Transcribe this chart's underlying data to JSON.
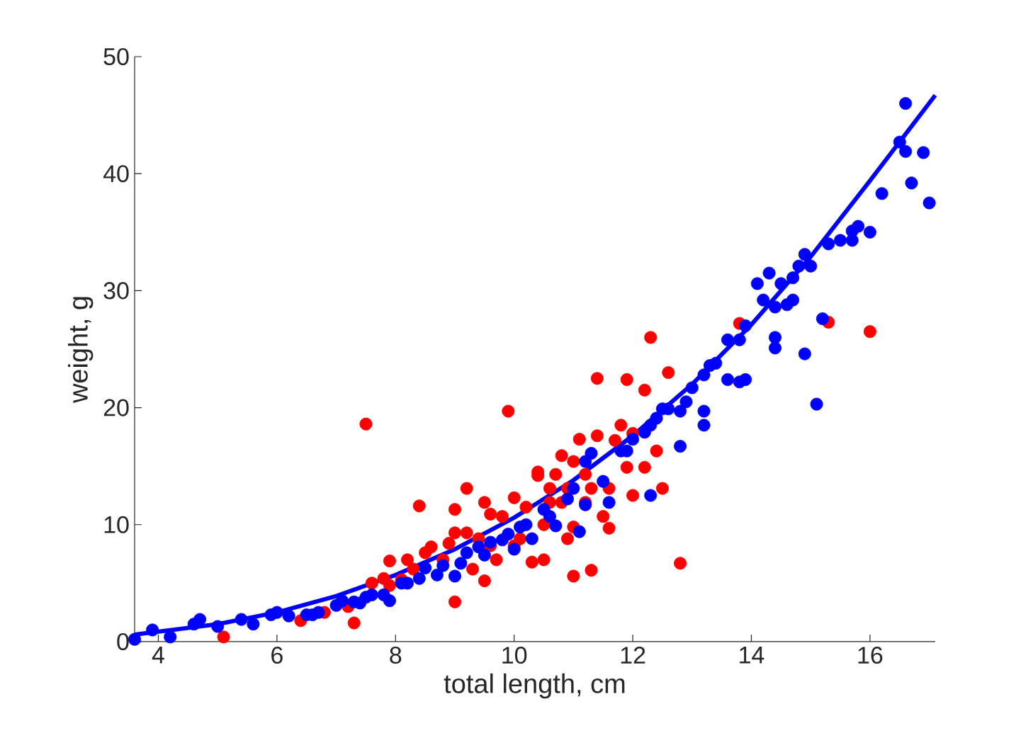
{
  "chart_data": {
    "type": "scatter",
    "xlabel": "total length, cm",
    "ylabel": "weight, g",
    "xlim": [
      3.6,
      17.1
    ],
    "ylim": [
      0,
      50
    ],
    "xticks": [
      4,
      6,
      8,
      10,
      12,
      14,
      16
    ],
    "yticks": [
      0,
      10,
      20,
      30,
      40,
      50
    ],
    "grid": false,
    "marker": "circle",
    "series": [
      {
        "color": "#ff0000",
        "x": [
          5.1,
          6.4,
          6.8,
          7.2,
          7.5,
          7.3,
          7.6,
          7.8,
          7.9,
          8.1,
          8.3,
          8.4,
          8.5,
          8.8,
          8.9,
          9.0,
          9.0,
          9.2,
          9.3,
          9.4,
          9.5,
          9.6,
          9.7,
          9.8,
          9.9,
          10.0,
          10.0,
          10.2,
          10.3,
          10.4,
          10.4,
          10.5,
          10.6,
          10.7,
          10.8,
          10.9,
          11.0,
          11.1,
          11.2,
          11.3,
          11.3,
          11.4,
          11.4,
          11.6,
          11.7,
          11.8,
          11.9,
          12.3,
          12.0,
          12.2,
          12.4,
          12.5,
          12.8,
          13.8,
          15.3,
          16.0,
          12.2,
          12.6,
          10.5,
          10.1,
          9.6,
          9.2,
          9.0,
          8.6,
          8.2,
          7.9,
          10.8,
          11.0,
          11.2,
          11.5,
          11.9,
          12.0,
          9.5,
          10.9,
          10.6,
          11.0,
          11.6
        ],
        "values": [
          0.4,
          1.8,
          2.5,
          3.0,
          18.6,
          1.6,
          5.0,
          5.4,
          6.9,
          5.3,
          6.2,
          11.6,
          7.6,
          7.0,
          8.4,
          3.4,
          9.3,
          9.3,
          6.2,
          8.8,
          11.9,
          10.9,
          7.0,
          10.7,
          19.7,
          8.2,
          12.3,
          11.5,
          6.8,
          14.2,
          14.5,
          10.0,
          13.1,
          14.3,
          15.9,
          8.8,
          15.4,
          17.3,
          14.3,
          6.1,
          13.1,
          17.6,
          22.5,
          13.1,
          17.2,
          18.5,
          22.4,
          26.0,
          17.8,
          14.9,
          16.3,
          13.1,
          6.7,
          27.2,
          27.3,
          26.5,
          21.5,
          23.0,
          7.0,
          8.8,
          8.2,
          13.1,
          11.3,
          8.1,
          7.0,
          4.8,
          11.9,
          9.8,
          11.9,
          10.7,
          14.9,
          12.5,
          5.2,
          13.1,
          11.9,
          5.6,
          9.7
        ]
      },
      {
        "color": "#0000ff",
        "x": [
          3.6,
          3.9,
          4.2,
          4.6,
          4.7,
          5.0,
          5.4,
          5.6,
          5.9,
          6.0,
          6.2,
          6.5,
          6.6,
          6.7,
          7.0,
          7.1,
          7.3,
          7.4,
          7.5,
          7.6,
          7.8,
          7.9,
          8.1,
          8.2,
          8.4,
          8.5,
          8.7,
          8.8,
          9.0,
          9.1,
          9.2,
          9.4,
          9.5,
          9.6,
          9.8,
          9.9,
          10.0,
          10.1,
          10.2,
          10.3,
          10.5,
          10.6,
          10.7,
          10.9,
          11.0,
          11.1,
          11.2,
          11.2,
          11.3,
          11.5,
          11.6,
          11.8,
          11.9,
          12.0,
          12.2,
          12.3,
          12.4,
          12.5,
          12.6,
          12.8,
          12.9,
          13.0,
          13.2,
          13.2,
          13.3,
          13.4,
          13.6,
          13.8,
          13.9,
          14.1,
          14.2,
          14.3,
          14.4,
          14.4,
          14.5,
          14.6,
          14.7,
          14.7,
          14.8,
          14.9,
          15.0,
          15.2,
          15.3,
          15.5,
          15.7,
          15.7,
          15.8,
          16.0,
          16.2,
          16.5,
          16.6,
          16.6,
          16.7,
          16.9,
          17.0,
          15.1,
          14.4,
          13.9,
          13.8,
          14.9,
          13.6,
          13.2,
          12.8,
          12.3
        ],
        "values": [
          0.2,
          1.0,
          0.4,
          1.5,
          1.9,
          1.3,
          1.9,
          1.5,
          2.3,
          2.5,
          2.2,
          2.3,
          2.3,
          2.5,
          3.1,
          3.5,
          3.4,
          3.3,
          3.8,
          4.0,
          4.0,
          3.5,
          5.0,
          5.0,
          5.4,
          6.3,
          5.7,
          6.5,
          5.6,
          6.7,
          7.6,
          8.1,
          7.4,
          8.5,
          8.7,
          9.2,
          7.9,
          9.8,
          10.0,
          8.8,
          11.3,
          10.7,
          9.9,
          12.2,
          13.1,
          9.4,
          11.7,
          15.4,
          16.1,
          13.7,
          11.9,
          16.3,
          16.3,
          17.3,
          17.9,
          18.5,
          19.1,
          19.9,
          19.9,
          19.7,
          20.5,
          21.7,
          19.7,
          22.8,
          23.6,
          23.8,
          25.8,
          25.8,
          27.0,
          30.6,
          29.2,
          31.5,
          26.0,
          28.6,
          30.6,
          28.8,
          31.1,
          29.2,
          32.1,
          33.1,
          32.1,
          27.6,
          34.0,
          34.3,
          35.1,
          34.3,
          35.5,
          35.0,
          38.3,
          42.7,
          46.0,
          41.9,
          39.2,
          41.8,
          37.5,
          20.3,
          25.1,
          22.4,
          22.2,
          24.6,
          22.4,
          18.5,
          16.7,
          12.5
        ]
      },
      {
        "type": "line",
        "color": "#0000ff",
        "marker": "none",
        "x": [
          3.6,
          5,
          6,
          7,
          8,
          9,
          10,
          11,
          12,
          13,
          14,
          15,
          16,
          17.1
        ],
        "values": [
          0.6,
          1.5,
          2.5,
          3.9,
          5.7,
          7.9,
          10.6,
          13.8,
          17.6,
          22.0,
          27.1,
          32.9,
          39.4,
          46.7
        ]
      }
    ]
  }
}
